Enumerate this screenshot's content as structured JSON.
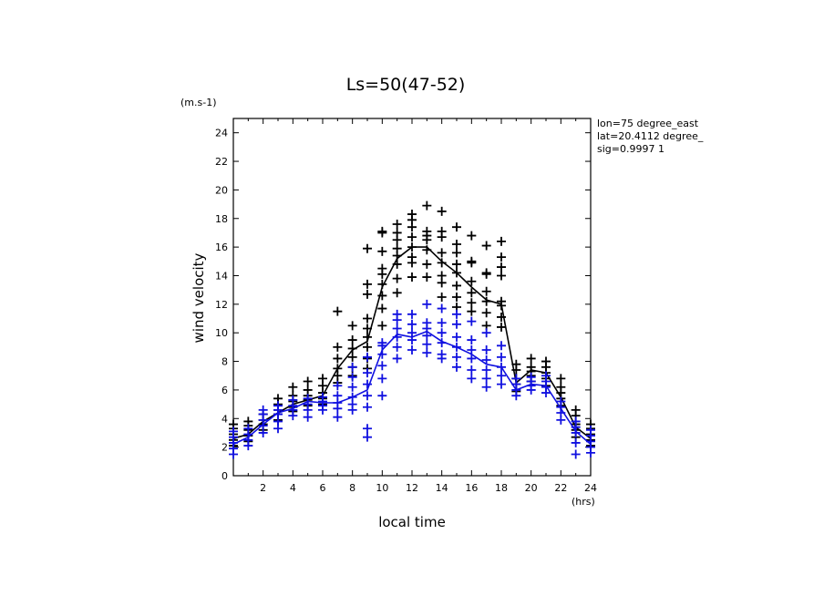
{
  "chart_data": {
    "type": "scatter",
    "title": "Ls=50(47-52)",
    "xlabel": "local time",
    "ylabel": "wind velocity",
    "x_unit": "(hrs)",
    "y_unit": "(m.s-1)",
    "annotations": [
      "lon=75 degree_east",
      "lat=20.4112 degree_",
      "sig=0.9997 1"
    ],
    "xlim": [
      0,
      24
    ],
    "ylim": [
      0,
      25
    ],
    "x_ticks": [
      2,
      4,
      6,
      8,
      10,
      12,
      14,
      16,
      18,
      20,
      22,
      24
    ],
    "y_ticks": [
      0,
      2,
      4,
      6,
      8,
      10,
      12,
      14,
      16,
      18,
      20,
      22,
      24
    ],
    "grid": false,
    "series": [
      {
        "color": "#000000",
        "mean": {
          "x": [
            0,
            1,
            2,
            3,
            4,
            5,
            6,
            7,
            8,
            9,
            10,
            11,
            12,
            13,
            14,
            15,
            16,
            17,
            18,
            19,
            20,
            21,
            22,
            23,
            24
          ],
          "y": [
            2.6,
            2.9,
            3.8,
            4.4,
            5.0,
            5.3,
            5.6,
            7.5,
            8.8,
            9.4,
            13.2,
            15.2,
            16.0,
            16.0,
            15.0,
            14.2,
            13.2,
            12.3,
            12.0,
            6.5,
            7.4,
            7.2,
            5.5,
            3.4,
            2.6
          ]
        },
        "points": [
          [
            0,
            2.1
          ],
          [
            0,
            2.5
          ],
          [
            0,
            2.9
          ],
          [
            0,
            3.3
          ],
          [
            0,
            3.6
          ],
          [
            1,
            2.4
          ],
          [
            1,
            2.8
          ],
          [
            1,
            3.2
          ],
          [
            1,
            3.5
          ],
          [
            1,
            3.8
          ],
          [
            2,
            3.2
          ],
          [
            2,
            3.6
          ],
          [
            2,
            3.9
          ],
          [
            2,
            4.3
          ],
          [
            3,
            3.9
          ],
          [
            3,
            4.3
          ],
          [
            3,
            4.6
          ],
          [
            3,
            5.0
          ],
          [
            3,
            5.4
          ],
          [
            4,
            4.5
          ],
          [
            4,
            4.8
          ],
          [
            4,
            5.2
          ],
          [
            4,
            5.6
          ],
          [
            4,
            6.2
          ],
          [
            5,
            4.9
          ],
          [
            5,
            5.3
          ],
          [
            5,
            5.6
          ],
          [
            5,
            6.0
          ],
          [
            5,
            6.6
          ],
          [
            6,
            5.0
          ],
          [
            6,
            5.4
          ],
          [
            6,
            5.8
          ],
          [
            6,
            6.3
          ],
          [
            6,
            6.8
          ],
          [
            7,
            6.5
          ],
          [
            7,
            7.0
          ],
          [
            7,
            7.5
          ],
          [
            7,
            8.2
          ],
          [
            7,
            9.0
          ],
          [
            7,
            11.5
          ],
          [
            8,
            7.0
          ],
          [
            8,
            7.6
          ],
          [
            8,
            8.3
          ],
          [
            8,
            8.9
          ],
          [
            8,
            9.5
          ],
          [
            8,
            10.5
          ],
          [
            9,
            7.5
          ],
          [
            9,
            8.2
          ],
          [
            9,
            9.0
          ],
          [
            9,
            9.7
          ],
          [
            9,
            10.3
          ],
          [
            9,
            11.0
          ],
          [
            9,
            12.7
          ],
          [
            9,
            13.4
          ],
          [
            9,
            15.9
          ],
          [
            10,
            10.5
          ],
          [
            10,
            11.7
          ],
          [
            10,
            12.6
          ],
          [
            10,
            13.4
          ],
          [
            10,
            14.1
          ],
          [
            10,
            14.5
          ],
          [
            10,
            15.7
          ],
          [
            10,
            17.0
          ],
          [
            10,
            17.1
          ],
          [
            11,
            12.8
          ],
          [
            11,
            13.8
          ],
          [
            11,
            14.8
          ],
          [
            11,
            15.4
          ],
          [
            11,
            15.9
          ],
          [
            11,
            16.5
          ],
          [
            11,
            17.0
          ],
          [
            11,
            17.6
          ],
          [
            12,
            13.9
          ],
          [
            12,
            14.9
          ],
          [
            12,
            15.3
          ],
          [
            12,
            16.0
          ],
          [
            12,
            16.7
          ],
          [
            12,
            17.4
          ],
          [
            12,
            17.9
          ],
          [
            12,
            18.3
          ],
          [
            13,
            13.9
          ],
          [
            13,
            14.8
          ],
          [
            13,
            15.8
          ],
          [
            13,
            16.5
          ],
          [
            13,
            16.8
          ],
          [
            13,
            17.1
          ],
          [
            13,
            18.9
          ],
          [
            14,
            12.5
          ],
          [
            14,
            13.5
          ],
          [
            14,
            14.0
          ],
          [
            14,
            14.9
          ],
          [
            14,
            15.6
          ],
          [
            14,
            16.7
          ],
          [
            14,
            17.1
          ],
          [
            14,
            18.5
          ],
          [
            15,
            11.8
          ],
          [
            15,
            12.5
          ],
          [
            15,
            13.3
          ],
          [
            15,
            14.2
          ],
          [
            15,
            14.8
          ],
          [
            15,
            15.6
          ],
          [
            15,
            16.2
          ],
          [
            15,
            17.4
          ],
          [
            16,
            11.5
          ],
          [
            16,
            12.1
          ],
          [
            16,
            12.8
          ],
          [
            16,
            13.6
          ],
          [
            16,
            14.9
          ],
          [
            16,
            15.0
          ],
          [
            16,
            16.8
          ],
          [
            17,
            10.5
          ],
          [
            17,
            11.4
          ],
          [
            17,
            12.2
          ],
          [
            17,
            12.9
          ],
          [
            17,
            14.1
          ],
          [
            17,
            14.2
          ],
          [
            17,
            16.1
          ],
          [
            18,
            10.4
          ],
          [
            18,
            11.1
          ],
          [
            18,
            11.9
          ],
          [
            18,
            12.2
          ],
          [
            18,
            14.0
          ],
          [
            18,
            14.6
          ],
          [
            18,
            15.3
          ],
          [
            18,
            16.4
          ],
          [
            19,
            5.9
          ],
          [
            19,
            6.4
          ],
          [
            19,
            6.8
          ],
          [
            19,
            7.4
          ],
          [
            19,
            7.8
          ],
          [
            20,
            6.6
          ],
          [
            20,
            7.0
          ],
          [
            20,
            7.3
          ],
          [
            20,
            7.6
          ],
          [
            20,
            8.2
          ],
          [
            21,
            6.3
          ],
          [
            21,
            6.8
          ],
          [
            21,
            7.2
          ],
          [
            21,
            7.6
          ],
          [
            21,
            8.0
          ],
          [
            22,
            4.9
          ],
          [
            22,
            5.4
          ],
          [
            22,
            5.8
          ],
          [
            22,
            6.2
          ],
          [
            22,
            6.8
          ],
          [
            23,
            2.7
          ],
          [
            23,
            3.2
          ],
          [
            23,
            3.6
          ],
          [
            23,
            4.2
          ],
          [
            23,
            4.6
          ],
          [
            24,
            2.1
          ],
          [
            24,
            2.5
          ],
          [
            24,
            2.9
          ],
          [
            24,
            3.3
          ],
          [
            24,
            3.6
          ]
        ]
      },
      {
        "color": "#1010e0",
        "mean": {
          "x": [
            0,
            1,
            2,
            3,
            4,
            5,
            6,
            7,
            8,
            9,
            10,
            11,
            12,
            13,
            14,
            15,
            16,
            17,
            18,
            19,
            20,
            21,
            22,
            23,
            24
          ],
          "y": [
            2.2,
            2.7,
            3.6,
            4.4,
            4.7,
            5.2,
            5.1,
            5.1,
            5.5,
            6.0,
            8.8,
            9.9,
            9.7,
            10.1,
            9.4,
            9.0,
            8.5,
            7.8,
            7.6,
            6.0,
            6.4,
            6.3,
            4.7,
            3.1,
            2.2
          ]
        },
        "points": [
          [
            0,
            1.5
          ],
          [
            0,
            1.9
          ],
          [
            0,
            2.3
          ],
          [
            0,
            2.7
          ],
          [
            0,
            3.1
          ],
          [
            1,
            2.1
          ],
          [
            1,
            2.5
          ],
          [
            1,
            2.9
          ],
          [
            1,
            3.3
          ],
          [
            2,
            3.0
          ],
          [
            2,
            3.5
          ],
          [
            2,
            3.9
          ],
          [
            2,
            4.3
          ],
          [
            2,
            4.6
          ],
          [
            3,
            3.3
          ],
          [
            3,
            3.8
          ],
          [
            3,
            4.3
          ],
          [
            3,
            4.6
          ],
          [
            3,
            4.9
          ],
          [
            4,
            4.2
          ],
          [
            4,
            4.6
          ],
          [
            4,
            4.9
          ],
          [
            4,
            5.3
          ],
          [
            5,
            4.1
          ],
          [
            5,
            4.6
          ],
          [
            5,
            5.0
          ],
          [
            5,
            5.4
          ],
          [
            6,
            4.6
          ],
          [
            6,
            4.9
          ],
          [
            6,
            5.2
          ],
          [
            6,
            5.5
          ],
          [
            7,
            4.1
          ],
          [
            7,
            4.7
          ],
          [
            7,
            5.1
          ],
          [
            7,
            5.6
          ],
          [
            7,
            6.3
          ],
          [
            8,
            4.6
          ],
          [
            8,
            5.0
          ],
          [
            8,
            5.5
          ],
          [
            8,
            6.2
          ],
          [
            8,
            6.9
          ],
          [
            8,
            7.6
          ],
          [
            9,
            2.7
          ],
          [
            9,
            3.3
          ],
          [
            9,
            4.8
          ],
          [
            9,
            5.6
          ],
          [
            9,
            6.4
          ],
          [
            9,
            7.2
          ],
          [
            9,
            8.3
          ],
          [
            10,
            5.6
          ],
          [
            10,
            6.8
          ],
          [
            10,
            7.7
          ],
          [
            10,
            8.5
          ],
          [
            10,
            9.1
          ],
          [
            10,
            9.3
          ],
          [
            11,
            8.2
          ],
          [
            11,
            9.0
          ],
          [
            11,
            9.7
          ],
          [
            11,
            10.3
          ],
          [
            11,
            10.9
          ],
          [
            11,
            11.3
          ],
          [
            12,
            8.8
          ],
          [
            12,
            9.5
          ],
          [
            12,
            10.0
          ],
          [
            12,
            10.6
          ],
          [
            12,
            11.3
          ],
          [
            13,
            8.6
          ],
          [
            13,
            9.2
          ],
          [
            13,
            9.8
          ],
          [
            13,
            10.3
          ],
          [
            13,
            10.7
          ],
          [
            13,
            12.0
          ],
          [
            14,
            8.2
          ],
          [
            14,
            8.5
          ],
          [
            14,
            9.3
          ],
          [
            14,
            10.0
          ],
          [
            14,
            10.7
          ],
          [
            14,
            11.7
          ],
          [
            15,
            7.6
          ],
          [
            15,
            8.3
          ],
          [
            15,
            9.0
          ],
          [
            15,
            9.7
          ],
          [
            15,
            10.6
          ],
          [
            15,
            11.3
          ],
          [
            16,
            6.8
          ],
          [
            16,
            7.4
          ],
          [
            16,
            8.2
          ],
          [
            16,
            8.8
          ],
          [
            16,
            9.5
          ],
          [
            16,
            10.8
          ],
          [
            17,
            6.2
          ],
          [
            17,
            6.8
          ],
          [
            17,
            7.4
          ],
          [
            17,
            8.1
          ],
          [
            17,
            8.8
          ],
          [
            17,
            10.0
          ],
          [
            18,
            6.4
          ],
          [
            18,
            7.0
          ],
          [
            18,
            7.6
          ],
          [
            18,
            8.3
          ],
          [
            18,
            9.1
          ],
          [
            19,
            5.6
          ],
          [
            19,
            6.0
          ],
          [
            19,
            6.4
          ],
          [
            19,
            6.8
          ],
          [
            20,
            6.0
          ],
          [
            20,
            6.3
          ],
          [
            20,
            6.6
          ],
          [
            20,
            6.9
          ],
          [
            21,
            5.8
          ],
          [
            21,
            6.2
          ],
          [
            21,
            6.6
          ],
          [
            21,
            7.0
          ],
          [
            22,
            3.9
          ],
          [
            22,
            4.4
          ],
          [
            22,
            4.8
          ],
          [
            22,
            5.2
          ],
          [
            23,
            1.5
          ],
          [
            23,
            2.3
          ],
          [
            23,
            3.0
          ],
          [
            23,
            3.4
          ],
          [
            23,
            3.8
          ],
          [
            24,
            1.6
          ],
          [
            24,
            2.0
          ],
          [
            24,
            2.4
          ],
          [
            24,
            2.8
          ],
          [
            24,
            3.2
          ]
        ]
      }
    ]
  }
}
